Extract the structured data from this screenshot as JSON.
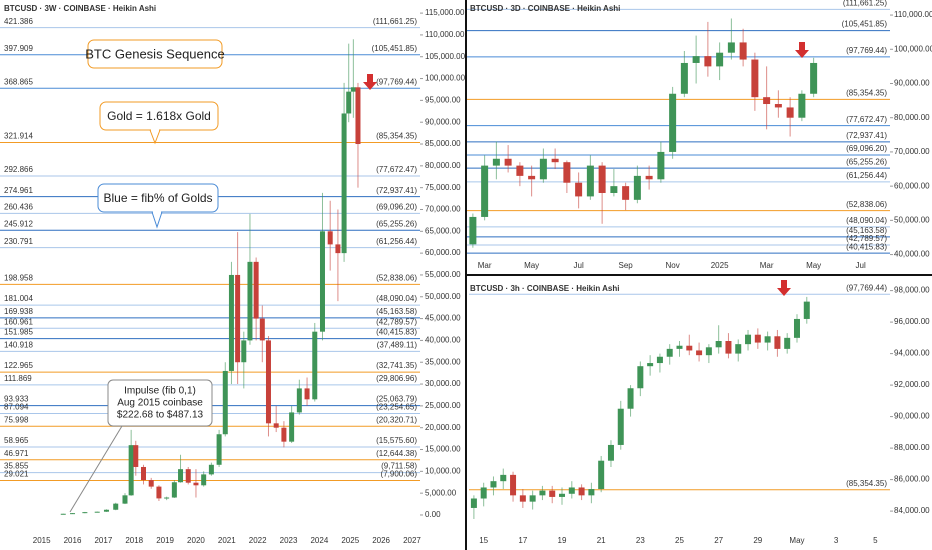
{
  "chart_data": [
    {
      "type": "candlestick",
      "title": "BTCUSD · 3W · COINBASE · Heikin Ashi",
      "up_color": "#3f9457",
      "down_color": "#c7413a",
      "xlim": [
        2013.65,
        2027.26
      ],
      "xticks": [
        2015,
        2016,
        2017,
        2018,
        2019,
        2020,
        2021,
        2022,
        2023,
        2024,
        2025,
        2026,
        2027
      ],
      "ylim": [
        -1150,
        118000
      ],
      "yticks": [
        {
          "value": 0,
          "label": "0.00"
        },
        {
          "value": 5000,
          "label": "5,000.00"
        },
        {
          "value": 10000,
          "label": "10,000.00"
        },
        {
          "value": 15000,
          "label": "15,000.00"
        },
        {
          "value": 20000,
          "label": "20,000.00"
        },
        {
          "value": 25000,
          "label": "25,000.00"
        },
        {
          "value": 30000,
          "label": "30,000.00"
        },
        {
          "value": 35000,
          "label": "35,000.00"
        },
        {
          "value": 40000,
          "label": "40,000.00"
        },
        {
          "value": 45000,
          "label": "45,000.00"
        },
        {
          "value": 50000,
          "label": "50,000.00"
        },
        {
          "value": 55000,
          "label": "55,000.00"
        },
        {
          "value": 60000,
          "label": "60,000.00"
        },
        {
          "value": 65000,
          "label": "65,000.00"
        },
        {
          "value": 70000,
          "label": "70,000.00"
        },
        {
          "value": 75000,
          "label": "75,000.00"
        },
        {
          "value": 80000,
          "label": "80,000.00"
        },
        {
          "value": 85000,
          "label": "85,000.00"
        },
        {
          "value": 90000,
          "label": "90,000.00"
        },
        {
          "value": 95000,
          "label": "95,000.00"
        },
        {
          "value": 100000,
          "label": "100,000.00"
        },
        {
          "value": 105000,
          "label": "105,000.00"
        },
        {
          "value": 110000,
          "label": "110,000.00"
        },
        {
          "value": 115000,
          "label": "115,000.00"
        }
      ],
      "x": [
        2015.7,
        2016.0,
        2016.4,
        2016.8,
        2017.1,
        2017.4,
        2017.7,
        2017.9,
        2018.05,
        2018.3,
        2018.55,
        2018.8,
        2019.05,
        2019.3,
        2019.5,
        2019.75,
        2020.0,
        2020.25,
        2020.5,
        2020.75,
        2020.95,
        2021.15,
        2021.35,
        2021.55,
        2021.75,
        2021.95,
        2022.15,
        2022.35,
        2022.6,
        2022.85,
        2023.1,
        2023.35,
        2023.6,
        2023.85,
        2024.1,
        2024.35,
        2024.6,
        2024.8,
        2024.95,
        2025.1,
        2025.25
      ],
      "open": [
        230,
        280,
        420,
        650,
        750,
        1200,
        2600,
        4500,
        16000,
        11000,
        8000,
        6500,
        3800,
        4000,
        7500,
        10500,
        7400,
        6800,
        9300,
        11500,
        18500,
        33000,
        55000,
        35000,
        40000,
        58000,
        45000,
        40000,
        21000,
        20000,
        16800,
        23500,
        29000,
        26500,
        42000,
        65000,
        62000,
        60000,
        92000,
        97000,
        98000
      ],
      "high": [
        300,
        450,
        700,
        800,
        1300,
        2800,
        5000,
        19500,
        17000,
        11500,
        8500,
        6800,
        4200,
        8000,
        13800,
        11000,
        10500,
        10000,
        12000,
        19500,
        35000,
        58000,
        64800,
        42000,
        69000,
        59000,
        48000,
        41000,
        25000,
        21500,
        25000,
        31000,
        31500,
        44000,
        73800,
        72000,
        70000,
        99000,
        108000,
        109000,
        99000
      ],
      "low": [
        210,
        270,
        400,
        600,
        700,
        1100,
        2500,
        4400,
        9000,
        7000,
        6000,
        3200,
        3400,
        3900,
        7400,
        7000,
        4000,
        6500,
        9000,
        11000,
        18000,
        30000,
        30000,
        29000,
        39000,
        40000,
        35000,
        18000,
        19000,
        15500,
        16500,
        23000,
        25000,
        26000,
        40000,
        56000,
        49000,
        58000,
        90000,
        91000,
        75000
      ],
      "close": [
        280,
        420,
        650,
        750,
        1200,
        2600,
        4500,
        16000,
        11000,
        8000,
        6500,
        3800,
        4000,
        7500,
        10500,
        7400,
        6800,
        9300,
        11500,
        18500,
        33000,
        55000,
        35000,
        40000,
        58000,
        45000,
        40000,
        21000,
        20000,
        16800,
        23500,
        29000,
        26500,
        42000,
        65000,
        62000,
        60000,
        92000,
        97000,
        98000,
        85000
      ],
      "levels": {
        "values": [
          111661.25,
          105451.85,
          97769.44,
          85354.35,
          77672.47,
          72937.41,
          69096.2,
          65255.26,
          61256.44,
          52838.06,
          48090.04,
          45163.58,
          42789.57,
          40415.83,
          37489.11,
          32741.35,
          29806.96,
          25063.79,
          23254.65,
          20320.71,
          15575.6,
          12644.38,
          9711.58,
          7900.06
        ],
        "value_labels": [
          "(111,661.25)",
          "(105,451.85)",
          "(97,769.44)",
          "(85,354.35)",
          "(77,672.47)",
          "(72,937.41)",
          "(69,096.20)",
          "(65,255.26)",
          "(61,256.44)",
          "(52,838.06)",
          "(48,090.04)",
          "(45,163.58)",
          "(42,789.57)",
          "(40,415.83)",
          "(37,489.11)",
          "(32,741.35)",
          "(29,806.96)",
          "(25,063.79)",
          "(23,254.65)",
          "(20,320.71)",
          "(15,575.60)",
          "(12,644.38)",
          "(9,711.58)",
          "(7,900.06)"
        ],
        "ratios": [
          "421.386",
          "397.909",
          "368.865",
          "321.914",
          "292.866",
          "274.961",
          "260.436",
          "245.912",
          "230.791",
          "198.958",
          "181.004",
          "169.938",
          "160.961",
          "151.985",
          "140.918",
          "122.965",
          "111.869",
          "93.933",
          "87.094",
          "75.998",
          "58.965",
          "46.971",
          "35.855",
          "29.021"
        ],
        "colors": [
          "#a9c6ea",
          "#4a8bd6",
          "#4a8bd6",
          "#f29b25",
          "#a9c6ea",
          "#2f6fc0",
          "#a9c6ea",
          "#2f6fc0",
          "#a9c6ea",
          "#f29b25",
          "#a9c6ea",
          "#2f6fc0",
          "#a9c6ea",
          "#2f6fc0",
          "#a9c6ea",
          "#f29b25",
          "#a9c6ea",
          "#2f6fc0",
          "#a9c6ea",
          "#f29b25",
          "#a9c6ea",
          "#f29b25",
          "#a9c6ea",
          "#f29b25"
        ]
      },
      "annotations": {
        "genesis": "BTC Genesis Sequence",
        "gold": "Gold = 1.618x Gold",
        "blue": "Blue = fib% of Golds",
        "impulse": [
          "Impulse (fib 0,1)",
          "Aug 2015 coinbase",
          "$222.68 to $487.13"
        ]
      }
    },
    {
      "type": "candlestick",
      "title": "BTCUSD · 3D · COINBASE · Heikin Ashi",
      "up_color": "#3f9457",
      "down_color": "#c7413a",
      "ylim": [
        39000,
        114400
      ],
      "yticks": [
        {
          "value": 40000,
          "label": "40,000.00"
        },
        {
          "value": 50000,
          "label": "50,000.00"
        },
        {
          "value": 60000,
          "label": "60,000.00"
        },
        {
          "value": 70000,
          "label": "70,000.00"
        },
        {
          "value": 80000,
          "label": "80,000.00"
        },
        {
          "value": 90000,
          "label": "90,000.00"
        },
        {
          "value": 100000,
          "label": "100,000.00"
        },
        {
          "value": 110000,
          "label": "110,000.00"
        }
      ],
      "categories": [
        null,
        "Mar",
        null,
        null,
        null,
        "May",
        null,
        null,
        null,
        "Jul",
        null,
        null,
        null,
        "Sep",
        null,
        null,
        null,
        "Nov",
        null,
        null,
        null,
        "2025",
        null,
        null,
        null,
        "Mar",
        null,
        null,
        null,
        "May",
        null,
        null,
        null,
        "Jul",
        null,
        null
      ],
      "open": [
        43000,
        51000,
        66000,
        68000,
        66000,
        63000,
        62000,
        68000,
        67000,
        61000,
        57000,
        66000,
        58000,
        60000,
        56000,
        63000,
        62000,
        70000,
        87000,
        96000,
        98000,
        95000,
        99000,
        102000,
        97000,
        86000,
        84000,
        83000,
        80000,
        87000,
        null,
        null,
        null,
        null,
        null,
        null
      ],
      "high": [
        52000,
        69000,
        73000,
        72000,
        67000,
        66000,
        71000,
        71000,
        67500,
        64000,
        69000,
        67000,
        65000,
        61000,
        66000,
        66000,
        73000,
        89000,
        99500,
        104000,
        108000,
        102000,
        109000,
        106000,
        99000,
        95000,
        88000,
        86000,
        88000,
        97500,
        null,
        null,
        null,
        null,
        null,
        null
      ],
      "low": [
        42000,
        50000,
        62000,
        64000,
        60000,
        57000,
        61000,
        65000,
        58000,
        53500,
        56000,
        49000,
        57000,
        53000,
        55000,
        59000,
        61000,
        68000,
        86000,
        90000,
        92000,
        91000,
        97000,
        95000,
        82000,
        76600,
        80000,
        74500,
        79000,
        86000,
        null,
        null,
        null,
        null,
        null,
        null
      ],
      "close": [
        51000,
        66000,
        68000,
        66000,
        63000,
        62000,
        68000,
        67000,
        61000,
        57000,
        66000,
        58000,
        60000,
        56000,
        63000,
        62000,
        70000,
        87000,
        96000,
        98000,
        95000,
        99000,
        102000,
        97000,
        86000,
        84000,
        83000,
        80000,
        87000,
        96000,
        null,
        null,
        null,
        null,
        null,
        null
      ],
      "levels": {
        "values": [
          111661.25,
          105451.85,
          97769.44,
          85354.35,
          77672.47,
          72937.41,
          69096.2,
          65255.26,
          61256.44,
          52838.06,
          48090.04,
          45163.58,
          42789.57,
          40415.83
        ],
        "value_labels": [
          "(111,661.25)",
          "(105,451.85)",
          "(97,769.44)",
          "(85,354.35)",
          "(77,672.47)",
          "(72,937.41)",
          "(69,096.20)",
          "(65,255.26)",
          "(61,256.44)",
          "(52,838.06)",
          "(48,090.04)",
          "(45,163.58)",
          "(42,789.57)",
          "(40,415.83)"
        ],
        "colors": [
          "#a9c6ea",
          "#2f6fc0",
          "#4a8bd6",
          "#f29b25",
          "#4a8bd6",
          "#2f6fc0",
          "#4a8bd6",
          "#2f6fc0",
          "#a9c6ea",
          "#f29b25",
          "#a9c6ea",
          "#2f6fc0",
          "#a9c6ea",
          "#2f6fc0"
        ]
      }
    },
    {
      "type": "candlestick",
      "title": "BTCUSD · 3h · COINBASE · Heikin Ashi",
      "up_color": "#3f9457",
      "down_color": "#c7413a",
      "ylim": [
        82800,
        98800
      ],
      "yticks": [
        {
          "value": 84000,
          "label": "84,000.00"
        },
        {
          "value": 86000,
          "label": "86,000.00"
        },
        {
          "value": 88000,
          "label": "88,000.00"
        },
        {
          "value": 90000,
          "label": "90,000.00"
        },
        {
          "value": 92000,
          "label": "92,000.00"
        },
        {
          "value": 94000,
          "label": "94,000.00"
        },
        {
          "value": 96000,
          "label": "96,000.00"
        },
        {
          "value": 98000,
          "label": "98,000.00"
        }
      ],
      "categories": [
        null,
        "15",
        null,
        null,
        null,
        "17",
        null,
        null,
        null,
        "19",
        null,
        null,
        null,
        "21",
        null,
        null,
        null,
        "23",
        null,
        null,
        null,
        "25",
        null,
        null,
        null,
        "27",
        null,
        null,
        null,
        "29",
        null,
        null,
        null,
        "May",
        null,
        null,
        null,
        "3",
        null,
        null,
        null,
        "5",
        null
      ],
      "open": [
        84200,
        84800,
        85500,
        85900,
        86300,
        85000,
        84600,
        85000,
        85300,
        84900,
        85100,
        85500,
        85000,
        85400,
        87200,
        88200,
        90500,
        91800,
        93200,
        93400,
        93800,
        94300,
        94500,
        94200,
        93900,
        94400,
        94800,
        94000,
        94600,
        95200,
        94700,
        95100,
        94300,
        95000,
        96200,
        null,
        null,
        null,
        null,
        null,
        null,
        null,
        null
      ],
      "high": [
        85000,
        85800,
        86200,
        86700,
        86500,
        85400,
        85300,
        85600,
        85600,
        85500,
        85900,
        85700,
        85800,
        87500,
        88500,
        91000,
        92000,
        93500,
        93900,
        94000,
        94600,
        94800,
        95200,
        94700,
        94600,
        95800,
        95300,
        94900,
        95500,
        95600,
        95400,
        95500,
        95300,
        96500,
        97600,
        null,
        null,
        null,
        null,
        null,
        null,
        null,
        null
      ],
      "low": [
        83500,
        84300,
        85000,
        85400,
        84600,
        84200,
        84100,
        84700,
        84500,
        84400,
        84800,
        84700,
        84500,
        85200,
        86800,
        87900,
        90000,
        91300,
        92600,
        92800,
        93300,
        93800,
        93900,
        93500,
        93400,
        94000,
        93700,
        93500,
        94200,
        94300,
        94200,
        93800,
        94000,
        94700,
        95900,
        null,
        null,
        null,
        null,
        null,
        null,
        null,
        null
      ],
      "close": [
        84800,
        85500,
        85900,
        86300,
        85000,
        84600,
        85000,
        85300,
        84900,
        85100,
        85500,
        85000,
        85400,
        87200,
        88200,
        90500,
        91800,
        93200,
        93400,
        93800,
        94300,
        94500,
        94200,
        93900,
        94400,
        94800,
        94000,
        94600,
        95200,
        94700,
        95100,
        94300,
        95000,
        96200,
        97300,
        null,
        null,
        null,
        null,
        null,
        null,
        null,
        null
      ],
      "levels": {
        "values": [
          97769.44,
          85354.35
        ],
        "value_labels": [
          "(97,769.44)",
          "(85,354.35)"
        ],
        "colors": [
          "#a9c6ea",
          "#f29b25"
        ]
      }
    }
  ]
}
